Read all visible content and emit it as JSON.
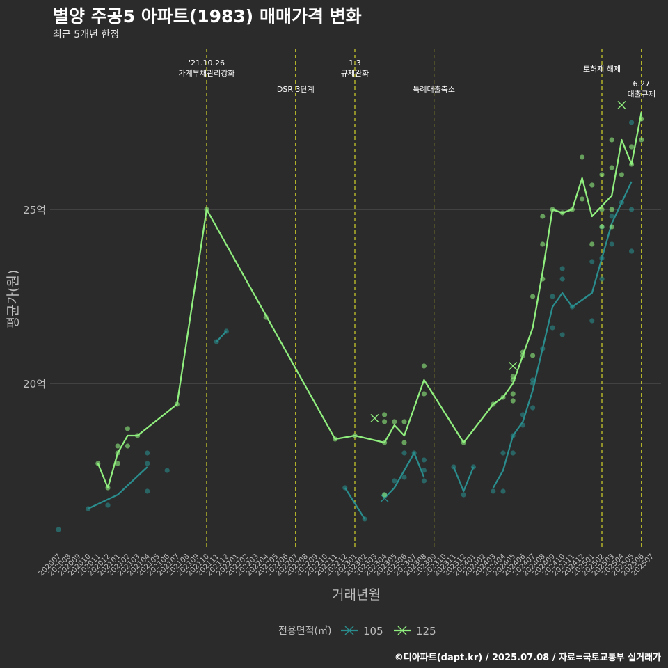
{
  "header": {
    "title": "별양 주공5 아파트(1983) 매매가격 변화",
    "subtitle": "최근 5개년 한정"
  },
  "footer": {
    "caption": "©디아파트(dapt.kr) / 2025.07.08 / 자료=국토교통부 실거래가"
  },
  "colors": {
    "background": "#2b2b2b",
    "series_105": "#2a8c8c",
    "series_125": "#90ee7e",
    "event_line": "#d4d42a",
    "grid": "#5a5a5a"
  },
  "chart_data": {
    "type": "line",
    "xlabel": "거래년월",
    "ylabel": "평균가(원)",
    "ylim": [
      15.2,
      29.3
    ],
    "y_ticks": [
      {
        "value": 20,
        "label": "20억"
      },
      {
        "value": 25,
        "label": "25억"
      }
    ],
    "grid": true,
    "legend": {
      "title": "전용면적(㎡)",
      "position": "bottom"
    },
    "x_labels": [
      "202007",
      "202008",
      "202009",
      "202010",
      "202011",
      "202012",
      "202101",
      "202102",
      "202103",
      "202104",
      "202105",
      "202106",
      "202107",
      "202108",
      "202109",
      "202110",
      "202111",
      "202112",
      "202201",
      "202202",
      "202203",
      "202204",
      "202205",
      "202206",
      "202207",
      "202208",
      "202209",
      "202210",
      "202211",
      "202212",
      "202301",
      "202302",
      "202303",
      "202304",
      "202305",
      "202306",
      "202307",
      "202308",
      "202309",
      "202310",
      "202311",
      "202312",
      "202401",
      "202402",
      "202403",
      "202404",
      "202405",
      "202406",
      "202407",
      "202408",
      "202409",
      "202410",
      "202411",
      "202412",
      "202501",
      "202502",
      "202503",
      "202504",
      "202505",
      "202506",
      "202507"
    ],
    "events": [
      {
        "x": "202110",
        "label_lines": [
          "'21.10.26",
          "가계부채관리강화"
        ],
        "row": 1
      },
      {
        "x": "202207",
        "label_lines": [
          "DSR 3단계"
        ],
        "row": 2
      },
      {
        "x": "202301",
        "label_lines": [
          "1.3",
          "규제완화"
        ],
        "row": 1
      },
      {
        "x": "202309",
        "label_lines": [
          "특례대출축소"
        ],
        "row": 2
      },
      {
        "x": "202502",
        "label_lines": [
          "토허제 해제"
        ],
        "row": 1
      },
      {
        "x": "202506",
        "label_lines": [
          "6.27",
          "대출규제"
        ],
        "row": 2
      }
    ],
    "series": [
      {
        "name": "105",
        "color": "#2a8c8c",
        "line_segments": [
          [
            [
              "202010",
              16.4
            ],
            [
              "202101",
              16.8
            ],
            [
              "202104",
              17.6
            ]
          ],
          [
            [
              "202111",
              21.2
            ],
            [
              "202112",
              21.5
            ]
          ],
          [
            [
              "202212",
              17.0
            ],
            [
              "202302",
              16.1
            ]
          ],
          [
            [
              "202304",
              16.7
            ],
            [
              "202305",
              17.0
            ],
            [
              "202307",
              18.0
            ],
            [
              "202308",
              17.3
            ]
          ],
          [
            [
              "202311",
              17.6
            ],
            [
              "202312",
              16.9
            ],
            [
              "202401",
              17.6
            ]
          ],
          [
            [
              "202403",
              17.0
            ],
            [
              "202404",
              17.5
            ],
            [
              "202405",
              18.5
            ],
            [
              "202406",
              18.9
            ],
            [
              "202407",
              19.8
            ],
            [
              "202408",
              21.0
            ],
            [
              "202409",
              22.2
            ],
            [
              "202410",
              22.6
            ],
            [
              "202411",
              22.2
            ],
            [
              "202501",
              22.6
            ],
            [
              "202502",
              23.6
            ],
            [
              "202503",
              24.6
            ],
            [
              "202504",
              25.2
            ],
            [
              "202505",
              25.8
            ]
          ]
        ],
        "points": [
          [
            "202007",
            15.8
          ],
          [
            "202010",
            16.4
          ],
          [
            "202012",
            16.5
          ],
          [
            "202104",
            16.9
          ],
          [
            "202104",
            17.7
          ],
          [
            "202104",
            18.0
          ],
          [
            "202106",
            17.5
          ],
          [
            "202111",
            21.2
          ],
          [
            "202112",
            21.5
          ],
          [
            "202212",
            17.0
          ],
          [
            "202302",
            16.1
          ],
          [
            "202304",
            16.8
          ],
          [
            "202305",
            17.2
          ],
          [
            "202306",
            17.3
          ],
          [
            "202306",
            18.0
          ],
          [
            "202307",
            18.0
          ],
          [
            "202308",
            17.2
          ],
          [
            "202308",
            17.5
          ],
          [
            "202308",
            17.8
          ],
          [
            "202311",
            17.6
          ],
          [
            "202312",
            16.8
          ],
          [
            "202401",
            17.6
          ],
          [
            "202403",
            16.9
          ],
          [
            "202404",
            16.9
          ],
          [
            "202404",
            18.0
          ],
          [
            "202405",
            18.0
          ],
          [
            "202405",
            18.5
          ],
          [
            "202406",
            19.1
          ],
          [
            "202406",
            18.8
          ],
          [
            "202407",
            20.0
          ],
          [
            "202407",
            20.1
          ],
          [
            "202407",
            19.3
          ],
          [
            "202408",
            21.0
          ],
          [
            "202409",
            22.5
          ],
          [
            "202409",
            21.6
          ],
          [
            "202410",
            23.3
          ],
          [
            "202410",
            23.0
          ],
          [
            "202410",
            21.4
          ],
          [
            "202411",
            22.2
          ],
          [
            "202501",
            23.5
          ],
          [
            "202501",
            21.8
          ],
          [
            "202502",
            23.0
          ],
          [
            "202502",
            23.6
          ],
          [
            "202502",
            24.5
          ],
          [
            "202503",
            24.0
          ],
          [
            "202503",
            24.8
          ],
          [
            "202504",
            25.2
          ],
          [
            "202505",
            23.8
          ],
          [
            "202505",
            25.0
          ],
          [
            "202505",
            27.5
          ]
        ],
        "cancelled": [
          [
            "202304",
            16.7
          ]
        ]
      },
      {
        "name": "125",
        "color": "#90ee7e",
        "line_segments": [
          [
            [
              "202011",
              17.7
            ],
            [
              "202012",
              17.0
            ],
            [
              "202101",
              18.0
            ],
            [
              "202102",
              18.5
            ],
            [
              "202103",
              18.5
            ],
            [
              "202107",
              19.4
            ],
            [
              "202110",
              25.0
            ],
            [
              "202211",
              18.4
            ],
            [
              "202301",
              18.5
            ],
            [
              "202304",
              18.3
            ],
            [
              "202305",
              18.8
            ],
            [
              "202306",
              18.5
            ],
            [
              "202308",
              20.1
            ],
            [
              "202312",
              18.3
            ],
            [
              "202403",
              19.4
            ],
            [
              "202404",
              19.6
            ],
            [
              "202405",
              20.0
            ],
            [
              "202406",
              20.8
            ],
            [
              "202407",
              21.6
            ],
            [
              "202408",
              23.2
            ],
            [
              "202409",
              25.0
            ],
            [
              "202410",
              24.9
            ],
            [
              "202411",
              25.0
            ],
            [
              "202412",
              25.9
            ],
            [
              "202501",
              24.8
            ],
            [
              "202502",
              25.1
            ],
            [
              "202503",
              25.4
            ],
            [
              "202504",
              27.0
            ],
            [
              "202505",
              26.3
            ],
            [
              "202506",
              27.8
            ]
          ]
        ],
        "points": [
          [
            "202011",
            17.7
          ],
          [
            "202012",
            17.0
          ],
          [
            "202101",
            17.7
          ],
          [
            "202101",
            18.0
          ],
          [
            "202101",
            18.2
          ],
          [
            "202102",
            18.2
          ],
          [
            "202102",
            18.7
          ],
          [
            "202103",
            18.5
          ],
          [
            "202107",
            19.4
          ],
          [
            "202110",
            25.0
          ],
          [
            "202204",
            21.9
          ],
          [
            "202211",
            18.4
          ],
          [
            "202301",
            18.5
          ],
          [
            "202304",
            18.3
          ],
          [
            "202304",
            18.9
          ],
          [
            "202304",
            19.1
          ],
          [
            "202304",
            16.8
          ],
          [
            "202305",
            18.9
          ],
          [
            "202306",
            18.3
          ],
          [
            "202306",
            18.9
          ],
          [
            "202308",
            20.5
          ],
          [
            "202308",
            19.7
          ],
          [
            "202312",
            18.3
          ],
          [
            "202403",
            19.4
          ],
          [
            "202404",
            19.6
          ],
          [
            "202405",
            19.5
          ],
          [
            "202405",
            19.7
          ],
          [
            "202405",
            20.1
          ],
          [
            "202405",
            20.2
          ],
          [
            "202406",
            20.8
          ],
          [
            "202406",
            20.9
          ],
          [
            "202407",
            20.8
          ],
          [
            "202407",
            22.5
          ],
          [
            "202408",
            23.0
          ],
          [
            "202408",
            24.0
          ],
          [
            "202408",
            24.8
          ],
          [
            "202409",
            25.0
          ],
          [
            "202410",
            24.9
          ],
          [
            "202411",
            25.0
          ],
          [
            "202412",
            25.3
          ],
          [
            "202412",
            26.5
          ],
          [
            "202501",
            25.7
          ],
          [
            "202501",
            24.0
          ],
          [
            "202502",
            24.5
          ],
          [
            "202502",
            25.0
          ],
          [
            "202502",
            26.0
          ],
          [
            "202503",
            24.5
          ],
          [
            "202503",
            25.0
          ],
          [
            "202503",
            26.2
          ],
          [
            "202503",
            27.0
          ],
          [
            "202504",
            26.0
          ],
          [
            "202505",
            26.3
          ],
          [
            "202505",
            26.8
          ],
          [
            "202506",
            27.0
          ],
          [
            "202506",
            27.6
          ]
        ],
        "cancelled": [
          [
            "202303",
            19.0
          ],
          [
            "202405",
            20.5
          ],
          [
            "202504",
            28.0
          ]
        ]
      }
    ]
  }
}
